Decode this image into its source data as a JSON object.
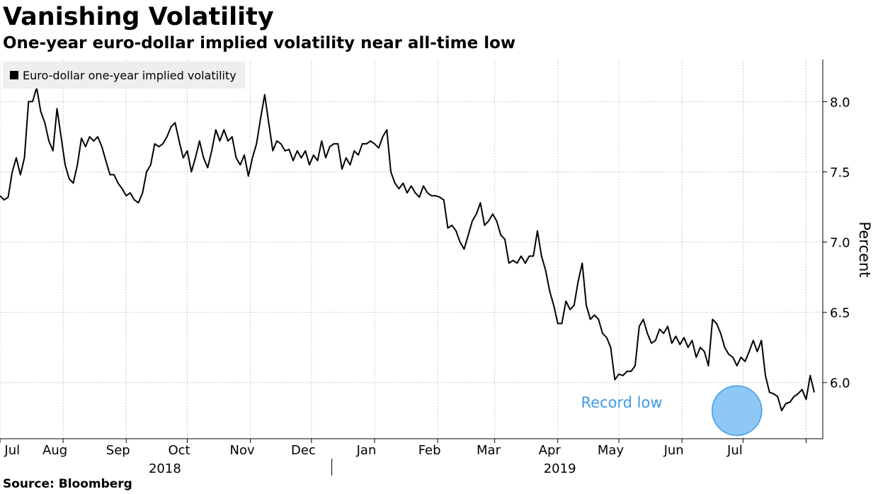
{
  "title": "Vanishing Volatility",
  "subtitle": "One-year euro-dollar implied volatility near all-time low",
  "source": "Source: Bloomberg",
  "colors": {
    "line": "#000000",
    "grid": "#cccccc",
    "annotation_text": "#3d9be9",
    "annotation_fill": "#8fc7f5",
    "annotation_stroke": "#3d9be9"
  },
  "chart_data": {
    "type": "line",
    "title": "Vanishing Volatility",
    "subtitle": "One-year euro-dollar implied volatility near all-time low",
    "xlabel": "",
    "ylabel": "Percent",
    "ylim": [
      5.6,
      8.3
    ],
    "y_ticks": [
      6.0,
      6.5,
      7.0,
      7.5,
      8.0
    ],
    "y_tick_labels": [
      "6.0",
      "6.5",
      "7.0",
      "7.5",
      "8.0"
    ],
    "x_range_days": [
      0,
      389
    ],
    "x_tick_days": [
      0,
      31,
      62,
      92,
      123,
      153,
      184,
      215,
      243,
      274,
      304,
      335,
      365,
      396
    ],
    "month_labels": [
      {
        "label": "Jul",
        "day": 6
      },
      {
        "label": "Aug",
        "day": 27
      },
      {
        "label": "Sep",
        "day": 58
      },
      {
        "label": "Oct",
        "day": 88
      },
      {
        "label": "Nov",
        "day": 119
      },
      {
        "label": "Dec",
        "day": 149
      },
      {
        "label": "Jan",
        "day": 180
      },
      {
        "label": "Feb",
        "day": 211
      },
      {
        "label": "Mar",
        "day": 240
      },
      {
        "label": "Apr",
        "day": 270
      },
      {
        "label": "May",
        "day": 300
      },
      {
        "label": "Jun",
        "day": 331
      },
      {
        "label": "Jul",
        "day": 361
      }
    ],
    "year_labels": [
      {
        "label": "2018",
        "day": 81
      },
      {
        "label": "2019",
        "day": 275
      }
    ],
    "year_divider_day": 163,
    "legend": [
      "Euro-dollar one-year implied volatility"
    ],
    "annotation": {
      "label": "Record low",
      "day": 362,
      "value": 5.8
    },
    "series": [
      {
        "name": "Euro-dollar one-year implied volatility",
        "points": [
          [
            0,
            7.33
          ],
          [
            2,
            7.3
          ],
          [
            4,
            7.32
          ],
          [
            6,
            7.5
          ],
          [
            8,
            7.6
          ],
          [
            10,
            7.48
          ],
          [
            12,
            7.6
          ],
          [
            14,
            8.0
          ],
          [
            16,
            8.0
          ],
          [
            18,
            8.1
          ],
          [
            20,
            7.93
          ],
          [
            22,
            7.85
          ],
          [
            24,
            7.72
          ],
          [
            26,
            7.65
          ],
          [
            28,
            7.95
          ],
          [
            30,
            7.75
          ],
          [
            32,
            7.55
          ],
          [
            34,
            7.45
          ],
          [
            36,
            7.42
          ],
          [
            38,
            7.55
          ],
          [
            40,
            7.74
          ],
          [
            42,
            7.68
          ],
          [
            44,
            7.75
          ],
          [
            46,
            7.72
          ],
          [
            48,
            7.75
          ],
          [
            50,
            7.68
          ],
          [
            52,
            7.58
          ],
          [
            54,
            7.48
          ],
          [
            56,
            7.48
          ],
          [
            58,
            7.42
          ],
          [
            60,
            7.38
          ],
          [
            62,
            7.33
          ],
          [
            64,
            7.35
          ],
          [
            66,
            7.3
          ],
          [
            68,
            7.28
          ],
          [
            70,
            7.35
          ],
          [
            72,
            7.5
          ],
          [
            74,
            7.55
          ],
          [
            76,
            7.7
          ],
          [
            78,
            7.68
          ],
          [
            80,
            7.7
          ],
          [
            82,
            7.75
          ],
          [
            84,
            7.82
          ],
          [
            86,
            7.85
          ],
          [
            88,
            7.72
          ],
          [
            90,
            7.6
          ],
          [
            92,
            7.65
          ],
          [
            94,
            7.5
          ],
          [
            96,
            7.6
          ],
          [
            98,
            7.72
          ],
          [
            100,
            7.6
          ],
          [
            102,
            7.53
          ],
          [
            104,
            7.65
          ],
          [
            106,
            7.8
          ],
          [
            108,
            7.72
          ],
          [
            110,
            7.8
          ],
          [
            112,
            7.72
          ],
          [
            114,
            7.75
          ],
          [
            116,
            7.6
          ],
          [
            118,
            7.55
          ],
          [
            120,
            7.62
          ],
          [
            122,
            7.47
          ],
          [
            124,
            7.6
          ],
          [
            126,
            7.7
          ],
          [
            128,
            7.88
          ],
          [
            130,
            8.05
          ],
          [
            132,
            7.85
          ],
          [
            134,
            7.65
          ],
          [
            136,
            7.72
          ],
          [
            138,
            7.7
          ],
          [
            140,
            7.65
          ],
          [
            142,
            7.66
          ],
          [
            144,
            7.58
          ],
          [
            146,
            7.65
          ],
          [
            148,
            7.6
          ],
          [
            150,
            7.65
          ],
          [
            152,
            7.55
          ],
          [
            154,
            7.62
          ],
          [
            156,
            7.58
          ],
          [
            158,
            7.72
          ],
          [
            160,
            7.6
          ],
          [
            162,
            7.68
          ],
          [
            164,
            7.7
          ],
          [
            166,
            7.7
          ],
          [
            168,
            7.52
          ],
          [
            170,
            7.6
          ],
          [
            172,
            7.55
          ],
          [
            174,
            7.65
          ],
          [
            176,
            7.62
          ],
          [
            178,
            7.7
          ],
          [
            180,
            7.7
          ],
          [
            182,
            7.72
          ],
          [
            184,
            7.7
          ],
          [
            186,
            7.67
          ],
          [
            188,
            7.75
          ],
          [
            190,
            7.8
          ],
          [
            192,
            7.5
          ],
          [
            194,
            7.42
          ],
          [
            196,
            7.38
          ],
          [
            198,
            7.42
          ],
          [
            200,
            7.35
          ],
          [
            202,
            7.4
          ],
          [
            204,
            7.35
          ],
          [
            206,
            7.32
          ],
          [
            208,
            7.4
          ],
          [
            210,
            7.35
          ],
          [
            212,
            7.33
          ],
          [
            214,
            7.33
          ],
          [
            216,
            7.32
          ],
          [
            218,
            7.3
          ],
          [
            220,
            7.1
          ],
          [
            222,
            7.12
          ],
          [
            224,
            7.08
          ],
          [
            226,
            7.0
          ],
          [
            228,
            6.95
          ],
          [
            230,
            7.05
          ],
          [
            232,
            7.15
          ],
          [
            234,
            7.2
          ],
          [
            236,
            7.28
          ],
          [
            238,
            7.12
          ],
          [
            240,
            7.15
          ],
          [
            242,
            7.2
          ],
          [
            244,
            7.15
          ],
          [
            246,
            7.05
          ],
          [
            248,
            7.02
          ],
          [
            250,
            6.85
          ],
          [
            252,
            6.87
          ],
          [
            254,
            6.85
          ],
          [
            256,
            6.9
          ],
          [
            258,
            6.85
          ],
          [
            260,
            6.9
          ],
          [
            262,
            6.9
          ],
          [
            264,
            7.08
          ],
          [
            266,
            6.9
          ],
          [
            268,
            6.8
          ],
          [
            270,
            6.65
          ],
          [
            272,
            6.55
          ],
          [
            274,
            6.42
          ],
          [
            276,
            6.42
          ],
          [
            278,
            6.58
          ],
          [
            280,
            6.52
          ],
          [
            282,
            6.55
          ],
          [
            284,
            6.72
          ],
          [
            286,
            6.85
          ],
          [
            288,
            6.55
          ],
          [
            290,
            6.45
          ],
          [
            292,
            6.48
          ],
          [
            294,
            6.45
          ],
          [
            296,
            6.35
          ],
          [
            298,
            6.32
          ],
          [
            300,
            6.25
          ],
          [
            302,
            6.02
          ],
          [
            304,
            6.06
          ],
          [
            306,
            6.05
          ],
          [
            308,
            6.08
          ],
          [
            310,
            6.08
          ],
          [
            312,
            6.12
          ],
          [
            314,
            6.4
          ],
          [
            316,
            6.45
          ],
          [
            318,
            6.35
          ],
          [
            320,
            6.28
          ],
          [
            322,
            6.3
          ],
          [
            324,
            6.38
          ],
          [
            326,
            6.35
          ],
          [
            328,
            6.4
          ],
          [
            330,
            6.28
          ],
          [
            332,
            6.33
          ],
          [
            334,
            6.27
          ],
          [
            336,
            6.32
          ],
          [
            338,
            6.25
          ],
          [
            340,
            6.3
          ],
          [
            342,
            6.18
          ],
          [
            344,
            6.25
          ],
          [
            346,
            6.22
          ],
          [
            348,
            6.12
          ],
          [
            350,
            6.45
          ],
          [
            352,
            6.42
          ],
          [
            354,
            6.35
          ],
          [
            356,
            6.25
          ],
          [
            358,
            6.2
          ],
          [
            360,
            6.18
          ],
          [
            362,
            6.12
          ],
          [
            364,
            6.18
          ],
          [
            366,
            6.15
          ],
          [
            368,
            6.22
          ],
          [
            370,
            6.3
          ],
          [
            372,
            6.22
          ],
          [
            374,
            6.3
          ],
          [
            376,
            6.05
          ],
          [
            378,
            5.93
          ],
          [
            380,
            5.92
          ],
          [
            382,
            5.9
          ],
          [
            384,
            5.8
          ],
          [
            386,
            5.85
          ],
          [
            388,
            5.86
          ],
          [
            390,
            5.9
          ],
          [
            392,
            5.92
          ],
          [
            394,
            5.95
          ],
          [
            396,
            5.88
          ],
          [
            398,
            6.05
          ],
          [
            400,
            5.93
          ]
        ]
      }
    ]
  }
}
